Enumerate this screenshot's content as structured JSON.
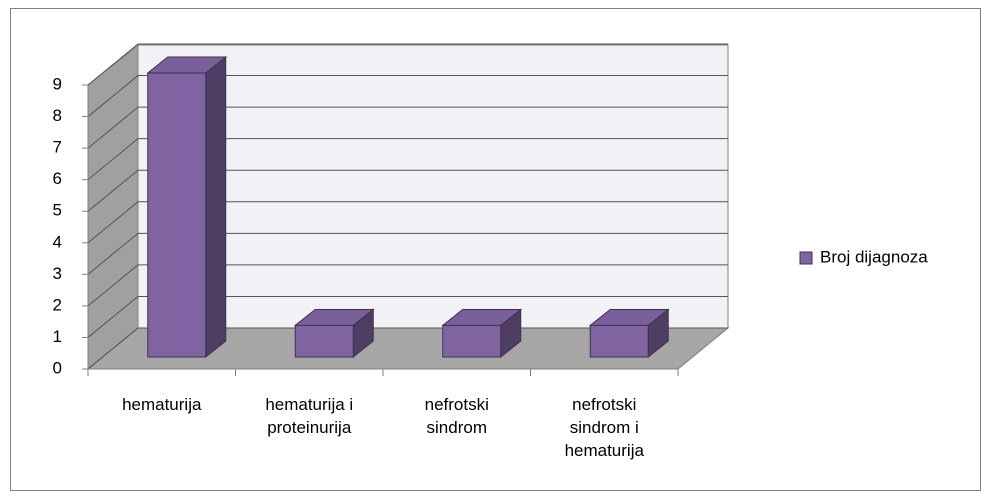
{
  "chart_data": {
    "type": "bar3d",
    "categories": [
      "hematurija",
      "hematurija  i proteinurija",
      "nefrotski sindrom",
      "nefrotski sindrom i hematurija"
    ],
    "series": [
      {
        "name": "Broj dijagnoza",
        "color": "#8064a2",
        "values": [
          9,
          1,
          1,
          1
        ]
      }
    ],
    "ylim": [
      0,
      9
    ],
    "yticks": [
      0,
      1,
      2,
      3,
      4,
      5,
      6,
      7,
      8,
      9
    ],
    "grid": true,
    "legend": "right"
  }
}
